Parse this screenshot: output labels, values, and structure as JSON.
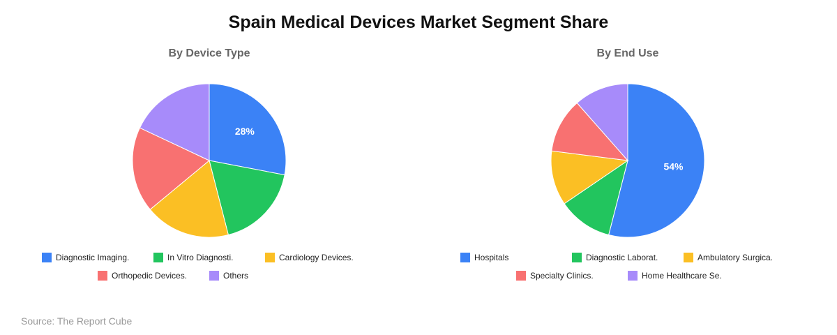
{
  "title": "Spain Medical Devices Market Segment Share",
  "source": "Source: The Report Cube",
  "chart_data": [
    {
      "type": "pie",
      "title": "By Device Type",
      "categories": [
        "Diagnostic Imaging.",
        "In Vitro Diagnosti.",
        "Cardiology Devices.",
        "Orthopedic Devices.",
        "Others"
      ],
      "values": [
        28,
        18,
        18,
        18,
        18
      ],
      "colors": [
        "#3b82f6",
        "#22c55e",
        "#fbbf24",
        "#f87171",
        "#a78bfa"
      ],
      "data_labels": [
        "28%"
      ],
      "legend": "bottom"
    },
    {
      "type": "pie",
      "title": "By End Use",
      "categories": [
        "Hospitals",
        "Diagnostic Laborat.",
        "Ambulatory Surgica.",
        "Specialty Clinics.",
        "Home Healthcare Se."
      ],
      "values": [
        54,
        11.5,
        11.5,
        11.5,
        11.5
      ],
      "colors": [
        "#3b82f6",
        "#22c55e",
        "#fbbf24",
        "#f87171",
        "#a78bfa"
      ],
      "data_labels": [
        "54%"
      ],
      "legend": "bottom"
    }
  ]
}
